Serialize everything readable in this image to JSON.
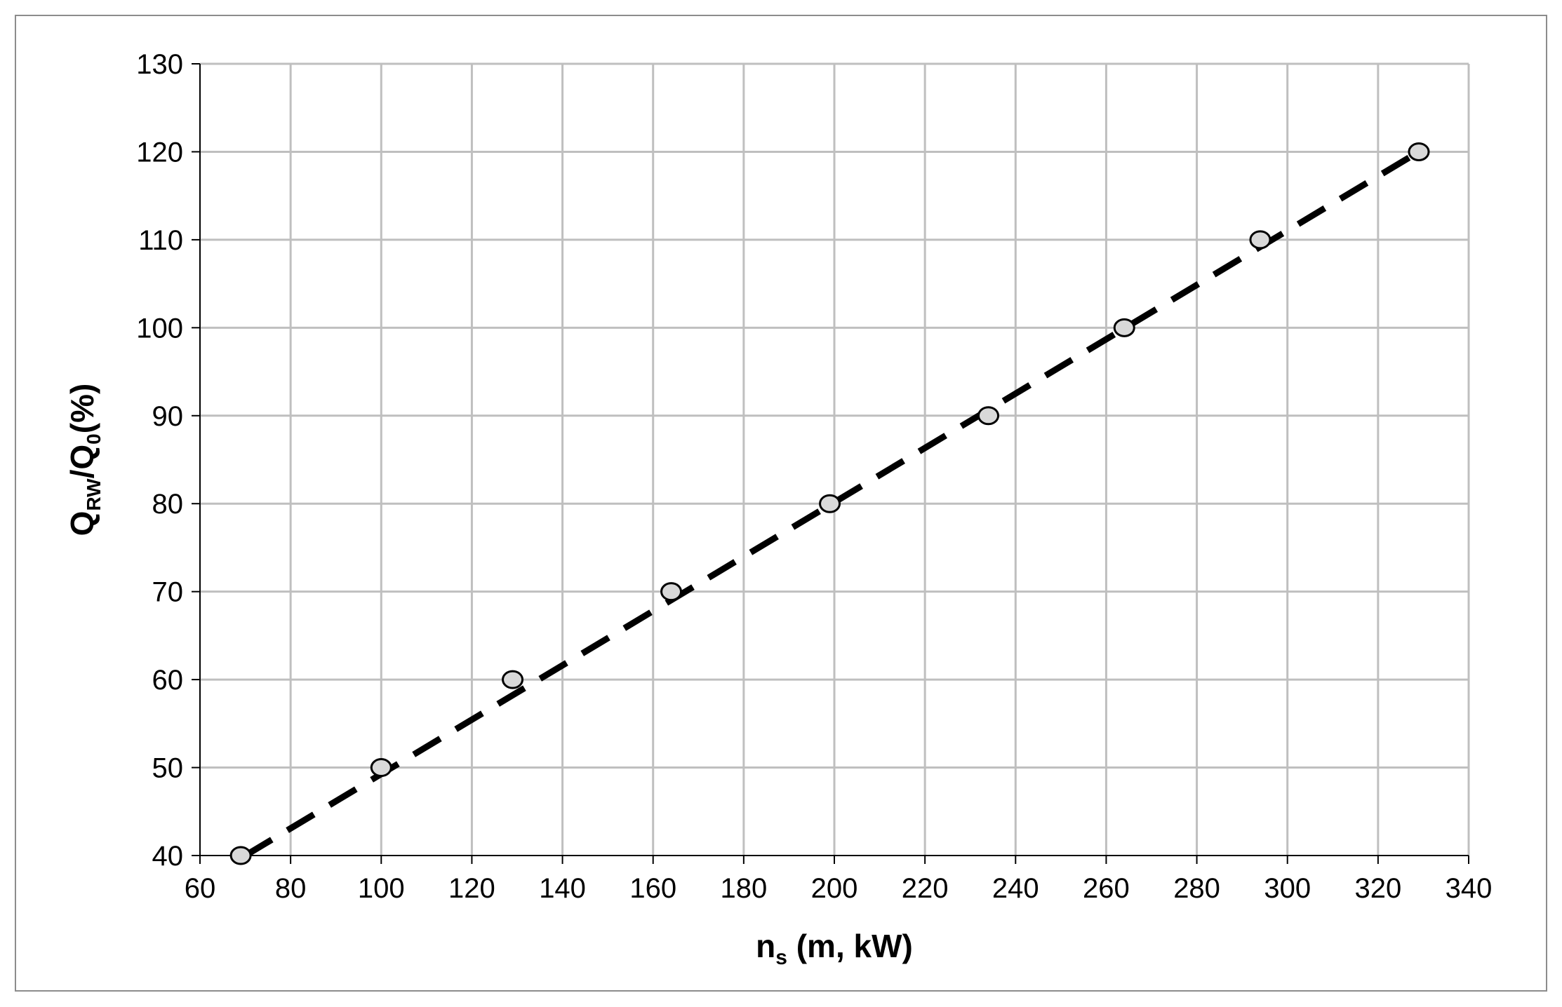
{
  "chart_data": {
    "type": "scatter",
    "xlabel": {
      "main": "n",
      "sub": "s",
      "rest": " (m, kW)"
    },
    "ylabel": {
      "q1": "Q",
      "sub1": "RW",
      "slash": "/",
      "q2": "Q",
      "sub2": "0",
      "rest": "(%)"
    },
    "xlim": [
      60,
      340
    ],
    "ylim": [
      40,
      130
    ],
    "xticks": [
      60,
      80,
      100,
      120,
      140,
      160,
      180,
      200,
      220,
      240,
      260,
      280,
      300,
      320,
      340
    ],
    "yticks": [
      40,
      50,
      60,
      70,
      80,
      90,
      100,
      110,
      120,
      130
    ],
    "grid": true,
    "series": [
      {
        "marker": "circle",
        "marker_fill": "#d9d9d9",
        "marker_edge": "#000000",
        "x": [
          69,
          100,
          129,
          164,
          199,
          234,
          264,
          294,
          329
        ],
        "y": [
          40,
          50,
          60,
          70,
          80,
          90,
          100,
          110,
          120
        ]
      }
    ],
    "trendline": {
      "style": "dashed",
      "color": "#000000",
      "x": [
        70,
        329
      ],
      "y": [
        40,
        120
      ]
    },
    "colors": {
      "grid": "#bfbfbf",
      "axis": "#000000",
      "frame": "#8c8c8c"
    }
  }
}
